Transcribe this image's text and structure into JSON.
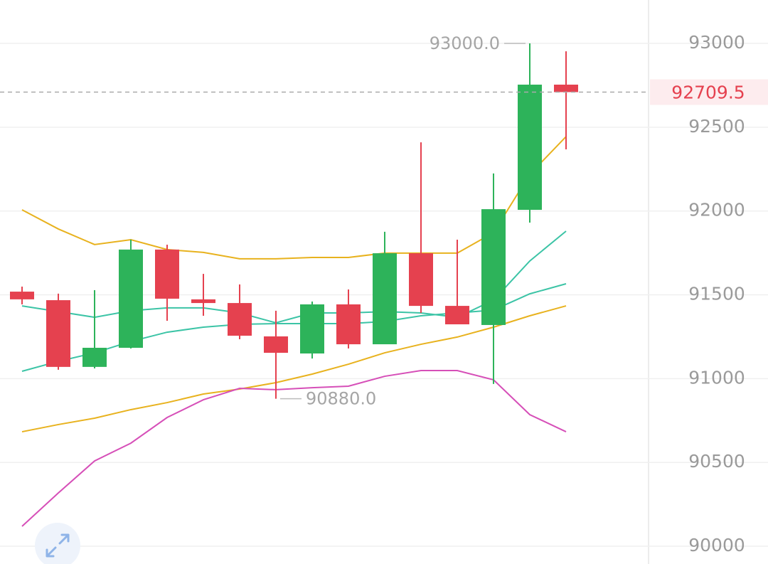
{
  "chart_data": {
    "type": "candlestick",
    "ylim": [
      89894,
      93259
    ],
    "yticks": [
      90000,
      90500,
      91000,
      91500,
      92000,
      92500,
      93000
    ],
    "grid": true,
    "up_color": "#2db35a",
    "down_color": "#e5414f",
    "open": [
      91519,
      91468,
      91070,
      91184,
      91770,
      91473,
      91451,
      91252,
      91150,
      91443,
      91205,
      91748,
      91434,
      91320,
      92007,
      92754
    ],
    "high": [
      91549,
      91507,
      91528,
      91829,
      91799,
      91625,
      91562,
      91405,
      91460,
      91532,
      91876,
      92410,
      91829,
      92224,
      93000,
      92953
    ],
    "low": [
      91443,
      91053,
      91061,
      91180,
      91345,
      91375,
      91235,
      90880,
      91120,
      91180,
      91205,
      91392,
      91324,
      90968,
      91931,
      92368
    ],
    "close": [
      91473,
      91070,
      91184,
      91770,
      91477,
      91451,
      91256,
      91154,
      91443,
      91205,
      91748,
      91434,
      91324,
      92011,
      92754,
      92709.5
    ],
    "series": [
      {
        "color": "#e8b21e",
        "values": [
          92007,
          91893,
          91800,
          91829,
          91770,
          91753,
          91715,
          91715,
          91723,
          91723,
          91749,
          91749,
          91749,
          91871,
          92219,
          92444
        ]
      },
      {
        "color": "#3cc4a6",
        "values": [
          91434,
          91400,
          91366,
          91405,
          91422,
          91422,
          91392,
          91333,
          91392,
          91392,
          91400,
          91392,
          91366,
          91468,
          91702,
          91880
        ]
      },
      {
        "color": "#3cc4a6",
        "values": [
          91044,
          91103,
          91154,
          91222,
          91277,
          91307,
          91324,
          91328,
          91328,
          91328,
          91341,
          91375,
          91392,
          91409,
          91506,
          91566
        ]
      },
      {
        "color": "#e8b21e",
        "values": [
          90683,
          90726,
          90764,
          90815,
          90857,
          90908,
          90938,
          90976,
          91027,
          91086,
          91154,
          91205,
          91248,
          91307,
          91375,
          91434
        ]
      },
      {
        "color": "#d64fb8",
        "values": [
          90119,
          90318,
          90509,
          90615,
          90768,
          90874,
          90942,
          90934,
          90946,
          90955,
          91014,
          91048,
          91048,
          90993,
          90785,
          90683
        ]
      }
    ],
    "annotations": [
      {
        "value": 93000,
        "label": "93000.0"
      },
      {
        "value": 90880,
        "label": "90880.0"
      }
    ],
    "last_price": 92709.5,
    "last_price_color": "#e5414f"
  }
}
